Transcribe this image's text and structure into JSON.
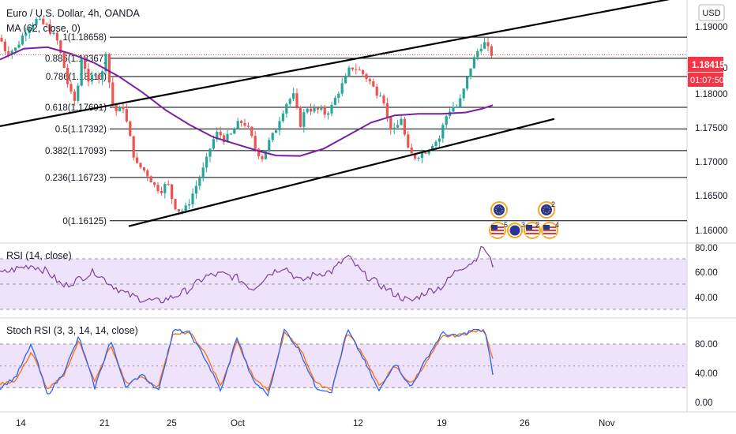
{
  "header": {
    "title": "Euro / U.S. Dollar, 4h, OANDA",
    "indicator": "MA (62, close, 0)",
    "currency_button": "USD"
  },
  "price_axis": {
    "ticks": [
      "1.19000",
      "1.18500",
      "1.18000",
      "1.17500",
      "1.17000",
      "1.16500",
      "1.16000"
    ],
    "last_price": "1.18415",
    "countdown": "01:07:50",
    "last_price_color": "#f23645"
  },
  "fib_levels": [
    {
      "label": "1(1.18658)",
      "value": 1.18658
    },
    {
      "label": "0.886(1.18367)",
      "value": 1.18367
    },
    {
      "label": "0.786(1.18116)",
      "value": 1.18116
    },
    {
      "label": "0.618(1.17691)",
      "value": 1.17691
    },
    {
      "label": "0.5(1.17392)",
      "value": 1.17392
    },
    {
      "label": "0.382(1.17093)",
      "value": 1.17093
    },
    {
      "label": "0.236(1.16723)",
      "value": 1.16723
    },
    {
      "label": "0(1.16125)",
      "value": 1.16125
    }
  ],
  "rsi": {
    "title": "RSI (14, close)",
    "ticks": [
      "80.00",
      "60.00",
      "40.00"
    ],
    "color": "#7e3fa0"
  },
  "stoch": {
    "title": "Stoch RSI (3, 3, 14, 14, close)",
    "ticks": [
      "80.00",
      "40.00",
      "0.00"
    ],
    "k_color": "#2962ff",
    "d_color": "#ff6d00"
  },
  "time_axis": {
    "labels": [
      "14",
      "21",
      "25",
      "Oct",
      "12",
      "19",
      "26",
      "Nov"
    ]
  },
  "events": {
    "badge_counts": [
      "2",
      "5",
      "3",
      "2",
      "4"
    ]
  },
  "colors": {
    "up": "#26a69a",
    "down": "#ef5350",
    "ma": "#7b1fa2",
    "band": "#e9dbf7"
  },
  "chart_data": {
    "type": "candlestick",
    "title": "Euro / U.S. Dollar, 4h, OANDA",
    "ylim": [
      1.1585,
      1.1915
    ],
    "close_path": [
      [
        0,
        1.1865
      ],
      [
        8,
        1.1845
      ],
      [
        20,
        1.185
      ],
      [
        32,
        1.1875
      ],
      [
        45,
        1.189
      ],
      [
        60,
        1.188
      ],
      [
        72,
        1.1862
      ],
      [
        80,
        1.183
      ],
      [
        88,
        1.179
      ],
      [
        96,
        1.1775
      ],
      [
        104,
        1.1845
      ],
      [
        112,
        1.18
      ],
      [
        120,
        1.182
      ],
      [
        128,
        1.1805
      ],
      [
        135,
        1.1855
      ],
      [
        140,
        1.178
      ],
      [
        148,
        1.1762
      ],
      [
        156,
        1.177
      ],
      [
        164,
        1.173
      ],
      [
        172,
        1.169
      ],
      [
        180,
        1.1685
      ],
      [
        188,
        1.1675
      ],
      [
        196,
        1.166
      ],
      [
        204,
        1.1655
      ],
      [
        212,
        1.1665
      ],
      [
        220,
        1.1635
      ],
      [
        228,
        1.1625
      ],
      [
        236,
        1.163
      ],
      [
        244,
        1.165
      ],
      [
        252,
        1.167
      ],
      [
        260,
        1.169
      ],
      [
        268,
        1.172
      ],
      [
        276,
        1.1735
      ],
      [
        284,
        1.1725
      ],
      [
        292,
        1.173
      ],
      [
        300,
        1.1745
      ],
      [
        308,
        1.175
      ],
      [
        316,
        1.1735
      ],
      [
        324,
        1.171
      ],
      [
        332,
        1.17
      ],
      [
        340,
        1.172
      ],
      [
        348,
        1.1735
      ],
      [
        356,
        1.176
      ],
      [
        364,
        1.1778
      ],
      [
        372,
        1.1785
      ],
      [
        380,
        1.1745
      ],
      [
        388,
        1.177
      ],
      [
        396,
        1.1765
      ],
      [
        404,
        1.1765
      ],
      [
        412,
        1.176
      ],
      [
        420,
        1.177
      ],
      [
        428,
        1.179
      ],
      [
        436,
        1.1805
      ],
      [
        444,
        1.1825
      ],
      [
        452,
        1.1822
      ],
      [
        460,
        1.1815
      ],
      [
        468,
        1.1805
      ],
      [
        476,
        1.179
      ],
      [
        484,
        1.179
      ],
      [
        492,
        1.1745
      ],
      [
        500,
        1.1735
      ],
      [
        508,
        1.1755
      ],
      [
        516,
        1.171
      ],
      [
        524,
        1.17
      ],
      [
        532,
        1.1705
      ],
      [
        540,
        1.171
      ],
      [
        548,
        1.172
      ],
      [
        556,
        1.1725
      ],
      [
        564,
        1.1755
      ],
      [
        572,
        1.177
      ],
      [
        580,
        1.177
      ],
      [
        588,
        1.1795
      ],
      [
        596,
        1.1825
      ],
      [
        604,
        1.1845
      ],
      [
        612,
        1.186
      ],
      [
        620,
        1.1845
      ],
      [
        624,
        1.18415
      ]
    ],
    "ma_62": [
      [
        0,
        1.1835
      ],
      [
        30,
        1.185
      ],
      [
        60,
        1.1852
      ],
      [
        90,
        1.1843
      ],
      [
        120,
        1.183
      ],
      [
        150,
        1.1812
      ],
      [
        180,
        1.179
      ],
      [
        210,
        1.1765
      ],
      [
        240,
        1.1745
      ],
      [
        270,
        1.1728
      ],
      [
        300,
        1.1718
      ],
      [
        330,
        1.1708
      ],
      [
        350,
        1.17025
      ],
      [
        380,
        1.1702
      ],
      [
        410,
        1.1712
      ],
      [
        440,
        1.173
      ],
      [
        470,
        1.1748
      ],
      [
        500,
        1.1758
      ],
      [
        530,
        1.176
      ],
      [
        560,
        1.176
      ],
      [
        590,
        1.1762
      ],
      [
        610,
        1.1767
      ],
      [
        624,
        1.1772
      ]
    ],
    "channel_upper": [
      [
        0,
        1.1743
      ],
      [
        856,
        1.192
      ]
    ],
    "channel_lower": [
      [
        163,
        1.1605
      ],
      [
        702,
        1.1753
      ]
    ],
    "rsi_values": [
      [
        0,
        58
      ],
      [
        20,
        62
      ],
      [
        40,
        65
      ],
      [
        60,
        60
      ],
      [
        80,
        48
      ],
      [
        100,
        54
      ],
      [
        120,
        60
      ],
      [
        140,
        50
      ],
      [
        160,
        42
      ],
      [
        180,
        38
      ],
      [
        200,
        36
      ],
      [
        220,
        40
      ],
      [
        240,
        46
      ],
      [
        260,
        56
      ],
      [
        280,
        58
      ],
      [
        300,
        55
      ],
      [
        320,
        46
      ],
      [
        340,
        58
      ],
      [
        360,
        64
      ],
      [
        380,
        52
      ],
      [
        400,
        58
      ],
      [
        420,
        60
      ],
      [
        440,
        72
      ],
      [
        460,
        58
      ],
      [
        480,
        50
      ],
      [
        500,
        42
      ],
      [
        520,
        36
      ],
      [
        540,
        44
      ],
      [
        560,
        48
      ],
      [
        580,
        62
      ],
      [
        600,
        68
      ],
      [
        612,
        80
      ],
      [
        624,
        65
      ]
    ],
    "stoch_k": [
      [
        0,
        20
      ],
      [
        20,
        35
      ],
      [
        40,
        80
      ],
      [
        60,
        10
      ],
      [
        80,
        40
      ],
      [
        100,
        90
      ],
      [
        120,
        20
      ],
      [
        140,
        85
      ],
      [
        160,
        20
      ],
      [
        180,
        40
      ],
      [
        200,
        15
      ],
      [
        220,
        100
      ],
      [
        240,
        95
      ],
      [
        260,
        60
      ],
      [
        280,
        15
      ],
      [
        300,
        90
      ],
      [
        320,
        30
      ],
      [
        340,
        10
      ],
      [
        360,
        100
      ],
      [
        380,
        70
      ],
      [
        400,
        20
      ],
      [
        420,
        15
      ],
      [
        440,
        100
      ],
      [
        460,
        60
      ],
      [
        480,
        15
      ],
      [
        500,
        55
      ],
      [
        520,
        20
      ],
      [
        540,
        60
      ],
      [
        560,
        95
      ],
      [
        580,
        90
      ],
      [
        600,
        100
      ],
      [
        614,
        98
      ],
      [
        624,
        40
      ]
    ],
    "stoch_d": [
      [
        0,
        25
      ],
      [
        20,
        30
      ],
      [
        40,
        70
      ],
      [
        60,
        18
      ],
      [
        80,
        35
      ],
      [
        100,
        85
      ],
      [
        120,
        28
      ],
      [
        140,
        78
      ],
      [
        160,
        25
      ],
      [
        180,
        35
      ],
      [
        200,
        20
      ],
      [
        220,
        95
      ],
      [
        240,
        96
      ],
      [
        260,
        68
      ],
      [
        280,
        22
      ],
      [
        300,
        85
      ],
      [
        320,
        36
      ],
      [
        340,
        15
      ],
      [
        360,
        95
      ],
      [
        380,
        75
      ],
      [
        400,
        26
      ],
      [
        420,
        18
      ],
      [
        440,
        96
      ],
      [
        460,
        66
      ],
      [
        480,
        22
      ],
      [
        500,
        50
      ],
      [
        520,
        25
      ],
      [
        540,
        55
      ],
      [
        560,
        90
      ],
      [
        580,
        92
      ],
      [
        600,
        97
      ],
      [
        614,
        99
      ],
      [
        624,
        60
      ]
    ]
  }
}
